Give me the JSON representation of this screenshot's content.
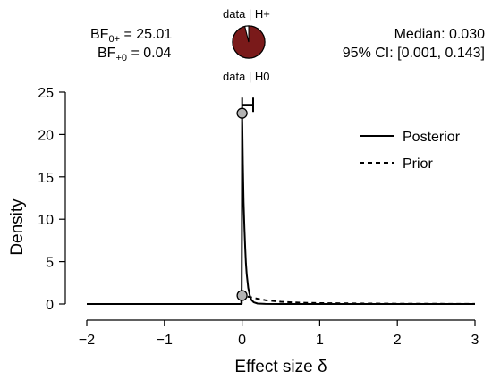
{
  "header": {
    "bf10_prefix": "BF",
    "bf10_sub": "0+",
    "bf10_value": " = 25.01",
    "bf01_prefix": "BF",
    "bf01_sub": "+0",
    "bf01_value": " = 0.04",
    "median": "Median: 0.030",
    "ci": "95% CI: [0.001, 0.143]"
  },
  "pie": {
    "top_label": "data | H+",
    "bottom_label": "data | H0",
    "fraction_h1": 0.9616,
    "color_h1": "#7a1a1a",
    "color_h0": "#ffffff"
  },
  "chart_data": {
    "type": "line",
    "xlabel": "Effect size δ",
    "ylabel": "Density",
    "xlim": [
      -2,
      3
    ],
    "ylim": [
      0,
      25
    ],
    "xticks": [
      -2,
      -1,
      0,
      1,
      2,
      3
    ],
    "xtick_labels": [
      "−2",
      "−1",
      "0",
      "1",
      "2",
      "3"
    ],
    "yticks": [
      0,
      5,
      10,
      15,
      20,
      25
    ],
    "ytick_labels": [
      "0",
      "5",
      "10",
      "15",
      "20",
      "25"
    ],
    "legend_position": "top-right",
    "series": [
      {
        "name": "Posterior",
        "style": "solid",
        "x": [
          -2,
          -0.01,
          -0.005,
          -0.002,
          0,
          0.003,
          0.01,
          0.02,
          0.03,
          0.04,
          0.05,
          0.06,
          0.08,
          0.1,
          0.12,
          0.15,
          0.2,
          0.3,
          0.5,
          3
        ],
        "y": [
          0,
          0,
          2,
          8,
          22.5,
          21.0,
          16.5,
          12.0,
          9.0,
          6.6,
          4.8,
          3.5,
          1.9,
          1.0,
          0.5,
          0.2,
          0.05,
          0.01,
          0,
          0
        ]
      },
      {
        "name": "Prior",
        "style": "dashed",
        "x": [
          -2,
          -0.005,
          0,
          0.1,
          0.2,
          0.3,
          0.5,
          0.75,
          1,
          1.5,
          2,
          2.5,
          3
        ],
        "y": [
          0,
          0,
          1.0,
          0.82,
          0.62,
          0.45,
          0.26,
          0.16,
          0.11,
          0.06,
          0.035,
          0.02,
          0.012
        ]
      }
    ],
    "points": [
      {
        "series": "Posterior",
        "x": 0,
        "y": 22.5
      },
      {
        "series": "Prior",
        "x": 0,
        "y": 1.0
      }
    ],
    "ci_interval": [
      0.001,
      0.143
    ],
    "ci_y": 23.5
  }
}
